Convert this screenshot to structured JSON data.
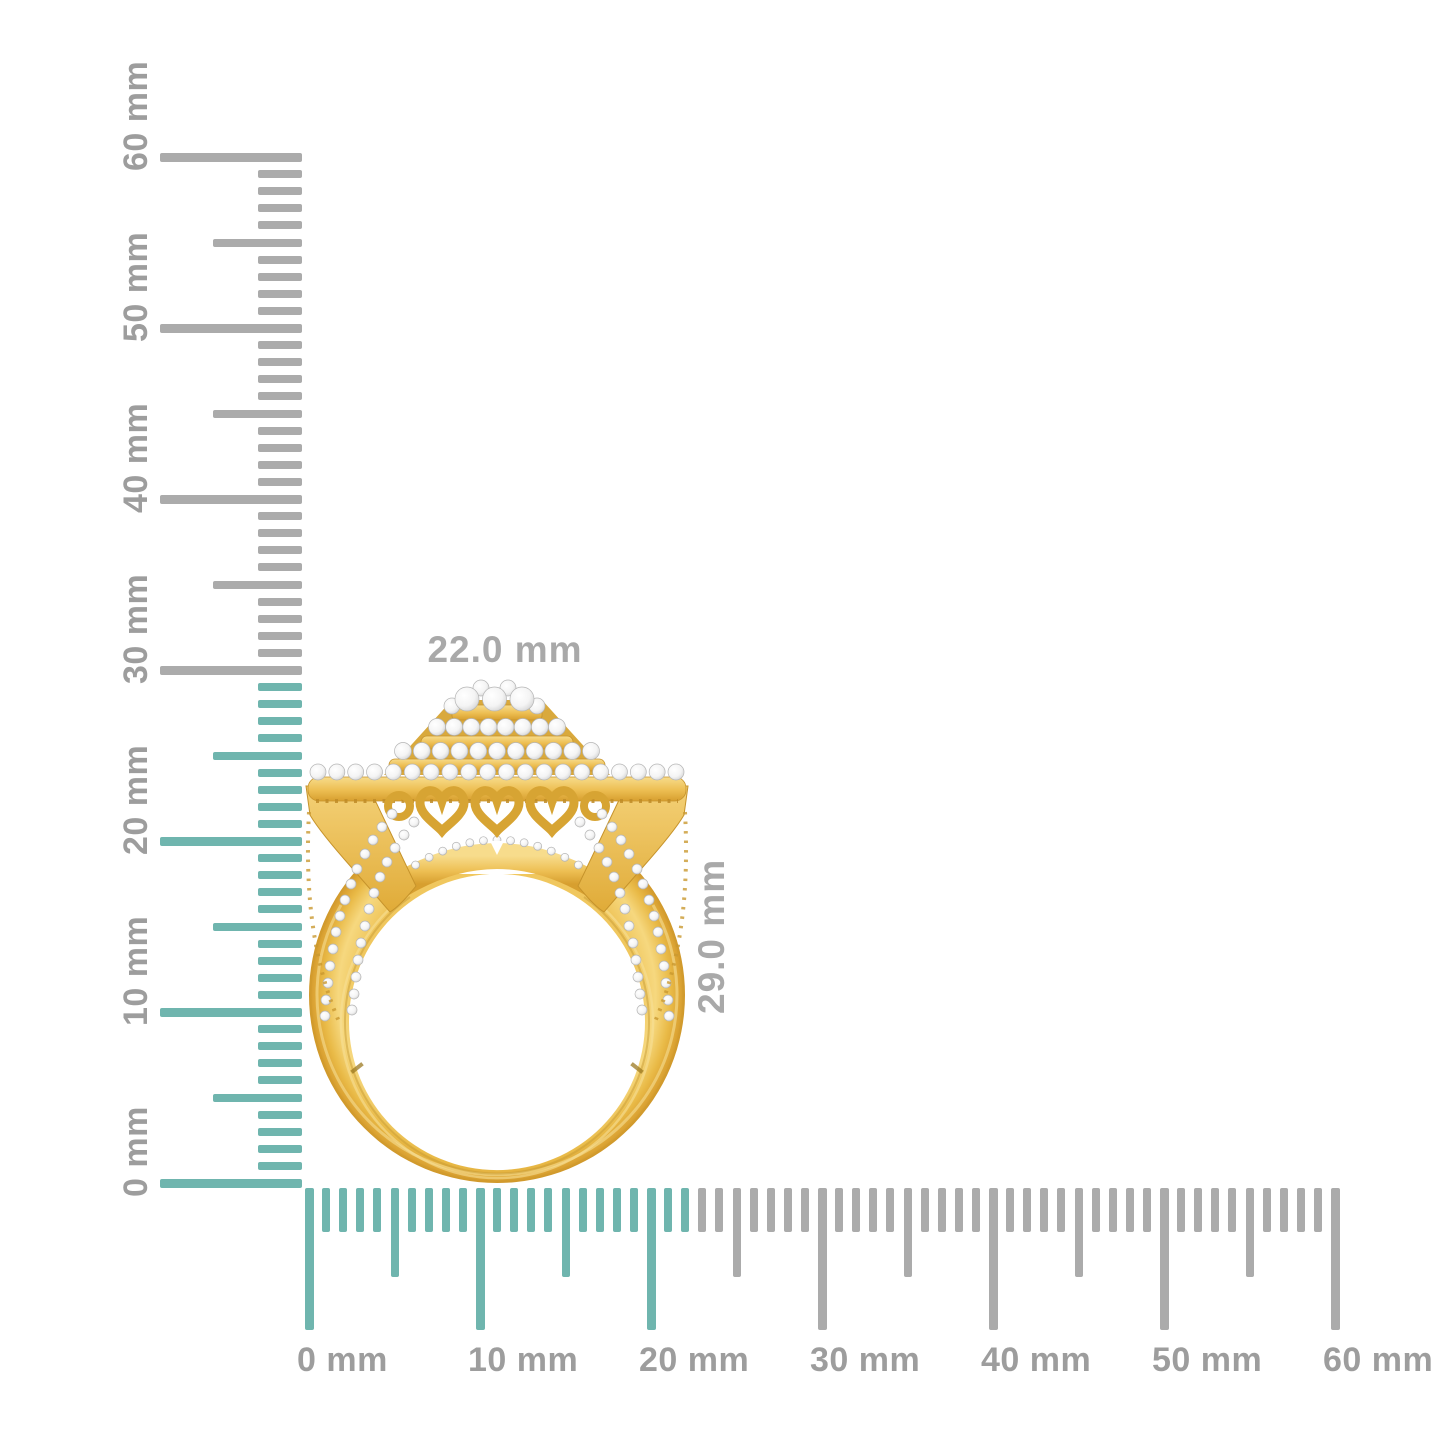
{
  "page": {
    "background": "#FFFFFF"
  },
  "subject": {
    "description": "yellow-gold double-halo diamond cluster ring, side profile, shown to scale against millimeter rulers"
  },
  "dimension_labels": {
    "width": "22.0 mm",
    "height": "29.0 mm"
  },
  "rulers": {
    "unit": "mm",
    "min_mm": 0,
    "max_mm": 60,
    "major_tick_every_mm": 10,
    "medium_tick_every_mm": 5,
    "minor_tick_every_mm": 1,
    "vertical": {
      "labels": [
        "0 mm",
        "10 mm",
        "20 mm",
        "30 mm",
        "40 mm",
        "50 mm",
        "60 mm"
      ],
      "highlighted_up_to_mm": 29
    },
    "horizontal": {
      "labels": [
        "0 mm",
        "10 mm",
        "20 mm",
        "30 mm",
        "40 mm",
        "50 mm",
        "60 mm"
      ],
      "highlighted_up_to_mm": 22
    }
  },
  "colors": {
    "highlight_teal": "#6FB5AE",
    "tick_gray": "#ABABAB",
    "label_gray": "#9D9D9D",
    "dimension_label_gray": "#A9A9A9",
    "gold_light": "#F8E09A",
    "gold_mid": "#EFC254",
    "gold_dark": "#CE9629",
    "diamond_white": "#FFFFFF"
  }
}
